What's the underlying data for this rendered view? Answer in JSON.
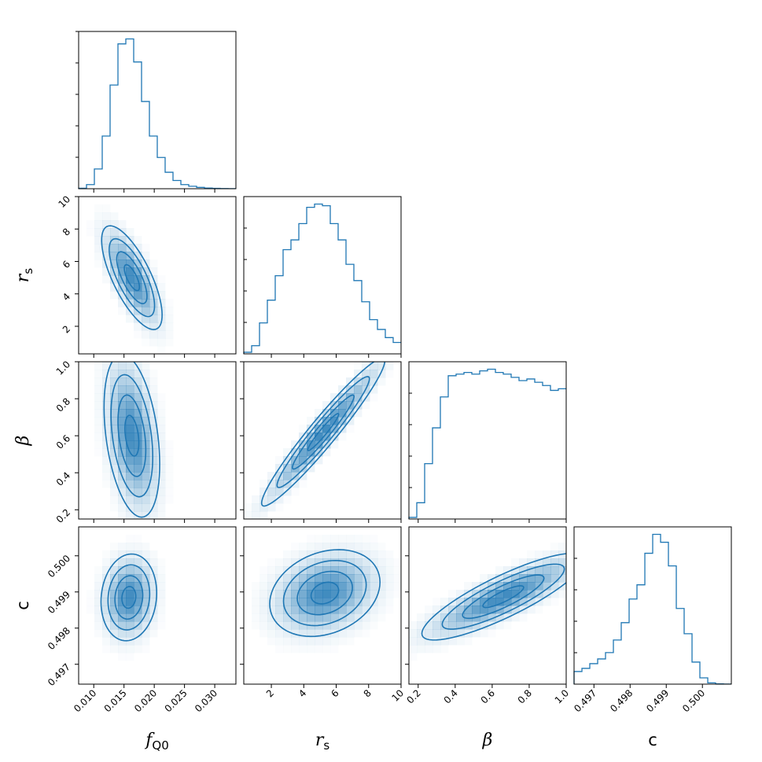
{
  "chart_data": {
    "type": "corner",
    "color": "#1f77b4",
    "parameters": [
      {
        "name": "f_Q0",
        "label_base": "f",
        "label_sub": "Q0",
        "range": [
          0.0075,
          0.0335
        ],
        "ticks": [
          0.01,
          0.015,
          0.02,
          0.025,
          0.03
        ],
        "tick_labels": [
          "0.010",
          "0.015",
          "0.020",
          "0.025",
          "0.030"
        ]
      },
      {
        "name": "r_s",
        "label_base": "r",
        "label_sub": "s",
        "range": [
          0.3,
          10.0
        ],
        "ticks": [
          2,
          4,
          6,
          8,
          10
        ],
        "tick_labels": [
          "2",
          "4",
          "6",
          "8",
          "10"
        ]
      },
      {
        "name": "beta",
        "label_base": "β",
        "label_sub": "",
        "range": [
          0.15,
          1.0
        ],
        "ticks": [
          0.2,
          0.4,
          0.6,
          0.8,
          1.0
        ],
        "tick_labels": [
          "0.2",
          "0.4",
          "0.6",
          "0.8",
          "1.0"
        ]
      },
      {
        "name": "c",
        "label_base": "c",
        "label_sub": "",
        "range": [
          0.49645,
          0.5008
        ],
        "ticks": [
          0.497,
          0.498,
          0.499,
          0.5
        ],
        "tick_labels": [
          "0.497",
          "0.498",
          "0.499",
          "0.500"
        ]
      }
    ],
    "histograms": [
      {
        "param": "f_Q0",
        "edges": [
          0.0075,
          0.0088,
          0.0101,
          0.0114,
          0.0127,
          0.014,
          0.0153,
          0.0166,
          0.0179,
          0.0192,
          0.0205,
          0.0218,
          0.0231,
          0.0244,
          0.0257,
          0.027,
          0.0283,
          0.0296,
          0.0309,
          0.0322,
          0.0335
        ],
        "counts": [
          0.3,
          2.5,
          12,
          32,
          63,
          88,
          91,
          77,
          53,
          32,
          19,
          10,
          5,
          2.5,
          1.5,
          0.8,
          0.4,
          0.2,
          0.1,
          0.05
        ]
      },
      {
        "param": "r_s",
        "edges": [
          0.3,
          0.785,
          1.27,
          1.755,
          2.24,
          2.725,
          3.21,
          3.695,
          4.18,
          4.665,
          5.15,
          5.635,
          6.12,
          6.605,
          7.09,
          7.575,
          8.06,
          8.545,
          9.03,
          9.515,
          10.0
        ],
        "counts": [
          1,
          5,
          19,
          33,
          48,
          64,
          70,
          80,
          90,
          92,
          91,
          80,
          70,
          55,
          45,
          32,
          21,
          15,
          10,
          7
        ]
      },
      {
        "param": "beta",
        "edges": [
          0.15,
          0.1925,
          0.235,
          0.2775,
          0.32,
          0.3625,
          0.405,
          0.4475,
          0.49,
          0.5325,
          0.575,
          0.6175,
          0.66,
          0.7025,
          0.745,
          0.7875,
          0.83,
          0.8725,
          0.915,
          0.9575,
          1.0
        ],
        "counts": [
          1,
          10,
          34,
          56,
          75,
          88,
          89,
          90,
          89,
          91,
          92,
          90,
          89,
          87,
          85,
          86,
          84,
          82,
          79,
          80
        ]
      },
      {
        "param": "c",
        "edges": [
          0.49645,
          0.496668,
          0.496885,
          0.497103,
          0.49732,
          0.497538,
          0.497755,
          0.497973,
          0.49819,
          0.498408,
          0.498625,
          0.498843,
          0.49906,
          0.499278,
          0.499495,
          0.499713,
          0.49993,
          0.500148,
          0.500365,
          0.500583,
          0.5008
        ],
        "counts": [
          8,
          10,
          13,
          16,
          20,
          28,
          39,
          54,
          63,
          83,
          95,
          90,
          75,
          48,
          32,
          14,
          4,
          0.8,
          0.2,
          0.05
        ]
      }
    ],
    "pairs": [
      {
        "x": "f_Q0",
        "y": "r_s",
        "mean": [
          0.0163,
          5.0
        ],
        "sd": [
          0.0025,
          1.6
        ],
        "rho": -0.72
      },
      {
        "x": "f_Q0",
        "y": "beta",
        "mean": [
          0.0163,
          0.6
        ],
        "sd": [
          0.0023,
          0.22
        ],
        "rho": -0.35
      },
      {
        "x": "f_Q0",
        "y": "c",
        "mean": [
          0.0158,
          0.49885
        ],
        "sd": [
          0.0023,
          0.0006
        ],
        "rho": 0.1
      },
      {
        "x": "r_s",
        "y": "beta",
        "mean": [
          5.2,
          0.62
        ],
        "sd": [
          1.9,
          0.2
        ],
        "rho": 0.96
      },
      {
        "x": "r_s",
        "y": "c",
        "mean": [
          5.3,
          0.49897
        ],
        "sd": [
          1.7,
          0.0006
        ],
        "rho": 0.25
      },
      {
        "x": "beta",
        "y": "c",
        "mean": [
          0.66,
          0.49887
        ],
        "sd": [
          0.22,
          0.0006
        ],
        "rho": 0.85
      }
    ],
    "contour_levels": [
      0.5,
      1.0,
      1.5,
      2.0
    ],
    "grid": false,
    "title": ""
  }
}
